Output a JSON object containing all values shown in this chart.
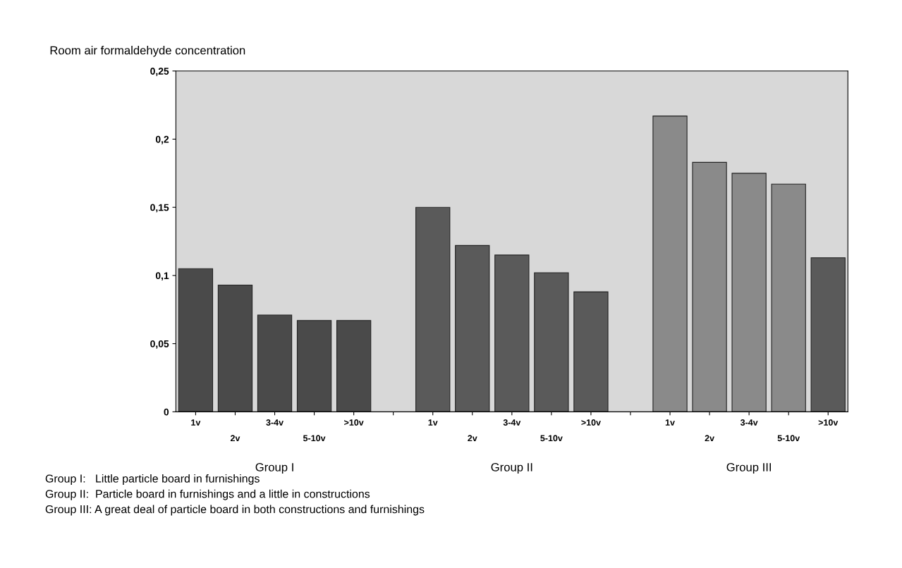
{
  "chart_data": {
    "type": "bar",
    "title": "Room air formaldehyde concentration",
    "categories": [
      "1v",
      "2v",
      "3-4v",
      "5-10v",
      ">10v",
      null,
      "1v",
      "2v",
      "3-4v",
      "5-10v",
      ">10v",
      null,
      "1v",
      "2v",
      "3-4v",
      "5-10v",
      ">10v"
    ],
    "values": [
      0.105,
      0.093,
      0.071,
      0.067,
      0.067,
      null,
      0.15,
      0.122,
      0.115,
      0.102,
      0.088,
      null,
      0.217,
      0.183,
      0.175,
      0.167,
      0.113
    ],
    "colors": [
      "#4a4a4a",
      "#4a4a4a",
      "#4a4a4a",
      "#4a4a4a",
      "#4a4a4a",
      "#4a4a4a",
      "#5a5a5a",
      "#5a5a5a",
      "#5a5a5a",
      "#5a5a5a",
      "#5a5a5a",
      "#5a5a5a",
      "#8a8a8a",
      "#8a8a8a",
      "#8a8a8a",
      "#8a8a8a",
      "#5a5a5a"
    ],
    "ylim": [
      0,
      0.25
    ],
    "yticks": [
      {
        "value": 0,
        "label": "0"
      },
      {
        "value": 0.05,
        "label": "0,05"
      },
      {
        "value": 0.1,
        "label": "0,1"
      },
      {
        "value": 0.15,
        "label": "0,15"
      },
      {
        "value": 0.2,
        "label": "0,2"
      },
      {
        "value": 0.25,
        "label": "0,25"
      }
    ],
    "grid": false,
    "annotations": [
      "Group I",
      "Group II",
      "Group III",
      "Group I:   Little particle board in furnishings",
      "Group II:  Particle board in furnishings and a little in constructions",
      "Group III: A great deal of particle board in both constructions and furnishings"
    ]
  }
}
